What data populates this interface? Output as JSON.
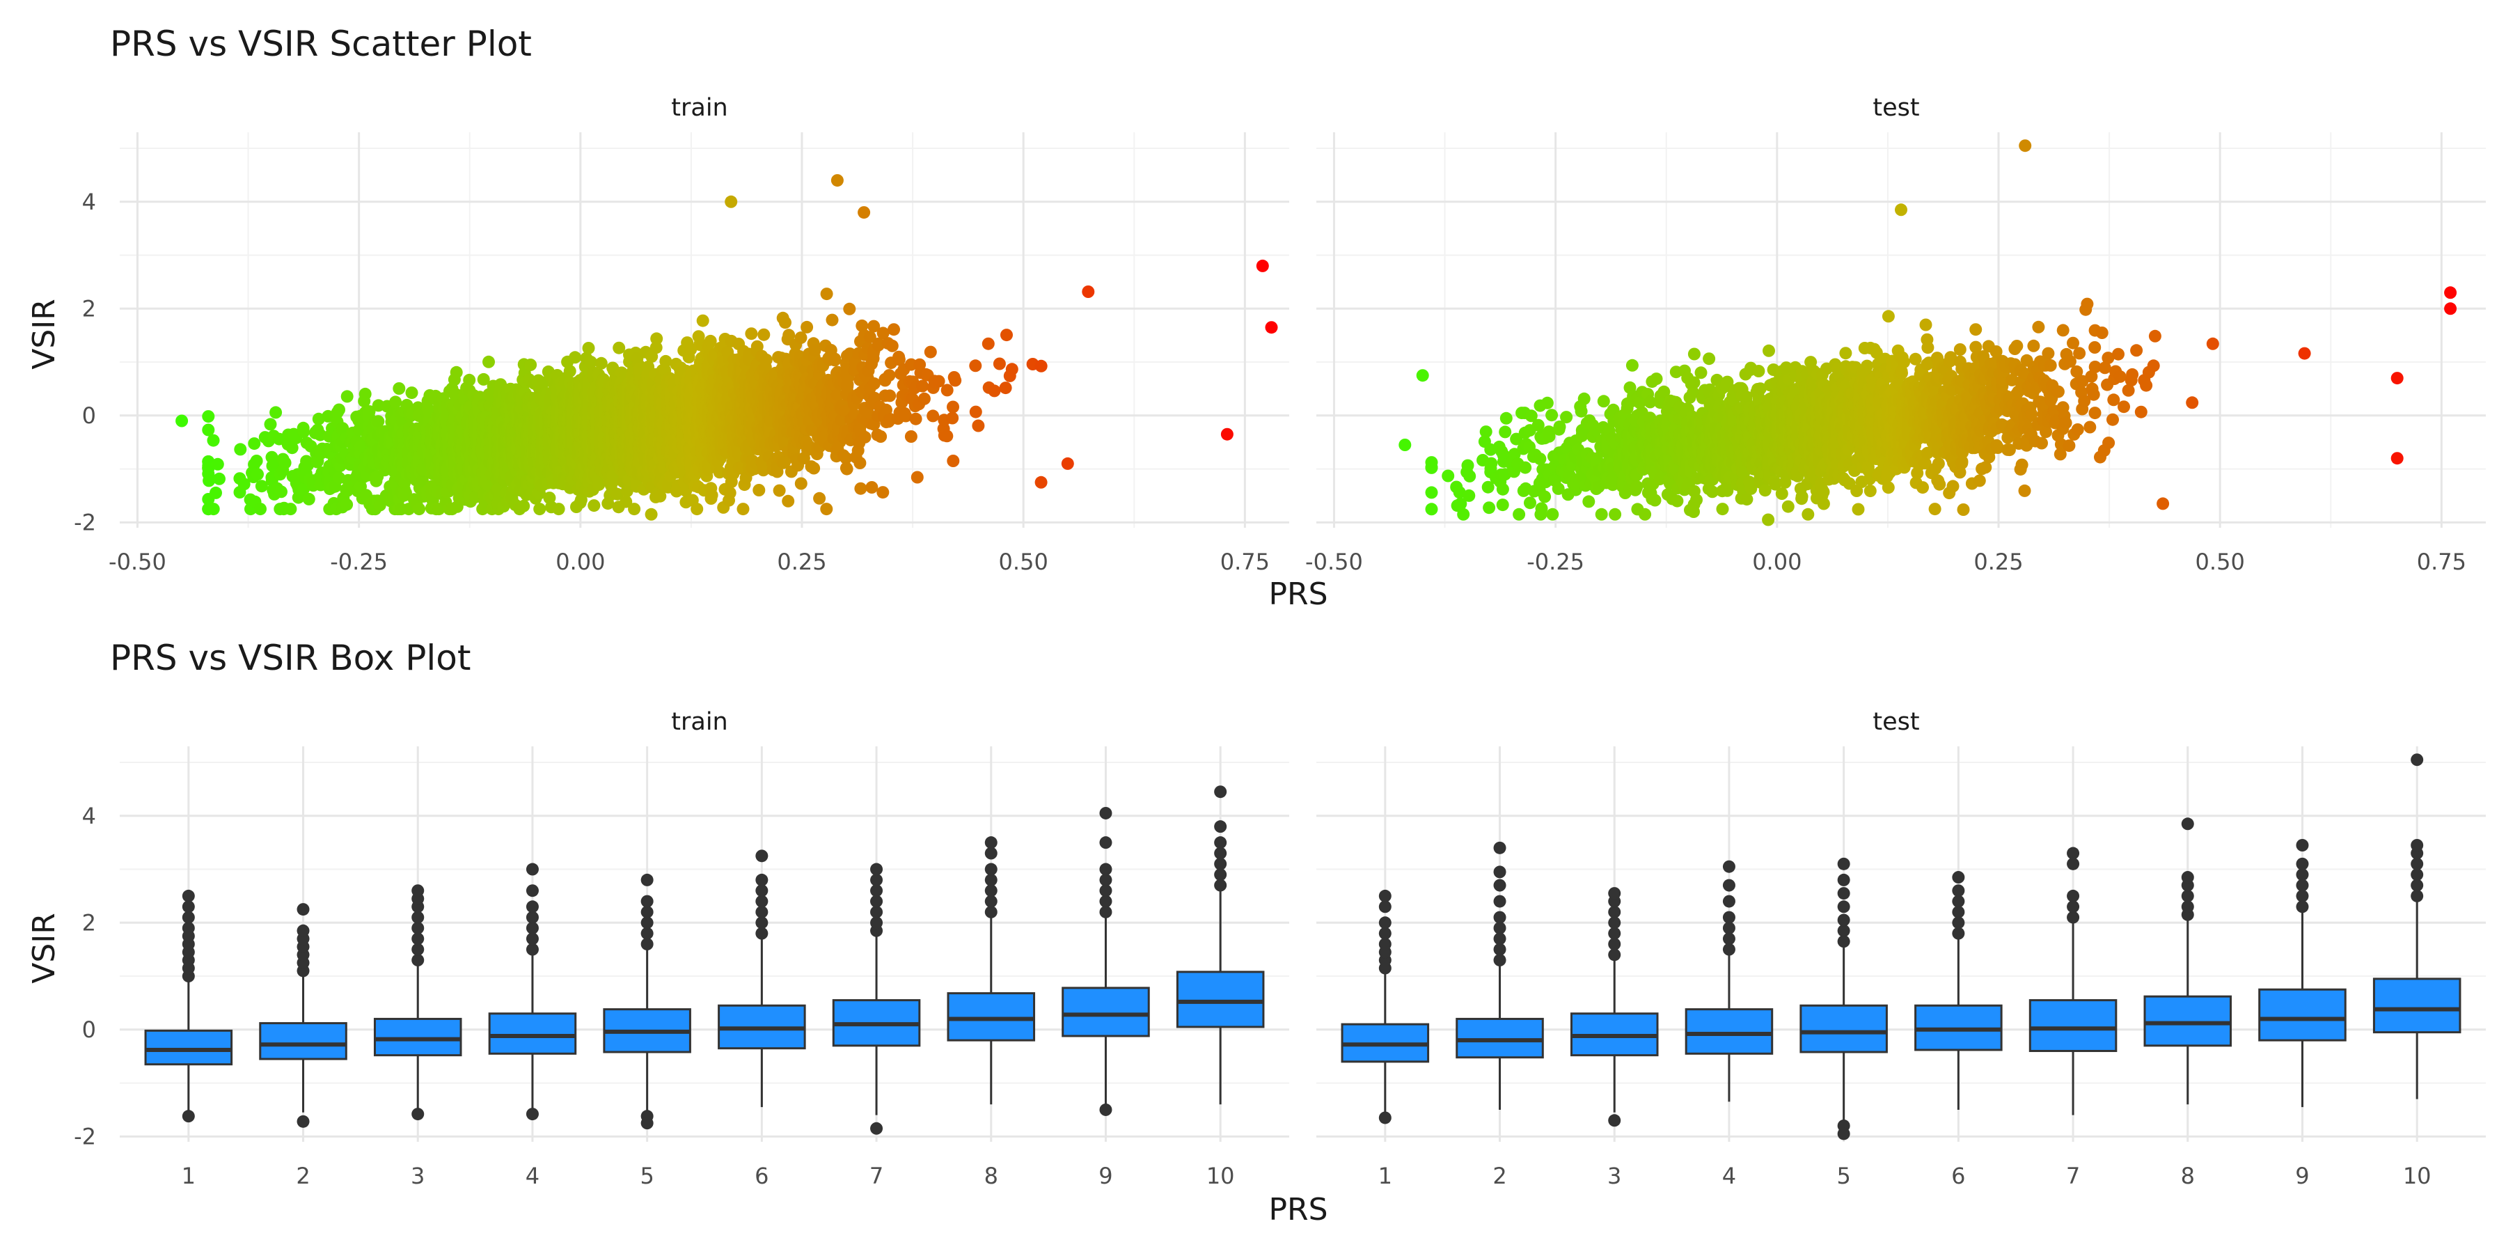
{
  "chart_data": [
    {
      "type": "scatter",
      "title": "PRS vs VSIR Scatter Plot",
      "xlabel": "PRS",
      "ylabel": "VSIR",
      "facets": [
        "train",
        "test"
      ],
      "xlim": [
        -0.52,
        0.8
      ],
      "ylim": [
        -2.1,
        5.3
      ],
      "x_ticks": [
        -0.5,
        -0.25,
        0,
        0.25,
        0.5,
        0.75
      ],
      "x_tick_labels": [
        "-0.50",
        "-0.25",
        "0.00",
        "0.25",
        "0.50",
        "0.75"
      ],
      "y_ticks": [
        -2,
        0,
        2,
        4
      ],
      "y_tick_labels": [
        "-2",
        "0",
        "2",
        "4"
      ],
      "grid": true,
      "color_scale": {
        "low": "#33ff00",
        "mid": "#c2b300",
        "high": "#ff0000",
        "range": [
          -0.5,
          0.77
        ]
      },
      "series": [
        {
          "name": "train",
          "n_points": 5000,
          "points_notable": [
            [
              -0.45,
              -0.1
            ],
            [
              0.17,
              4.0
            ],
            [
              0.29,
              4.4
            ],
            [
              0.32,
              3.8
            ],
            [
              0.77,
              2.8
            ],
            [
              0.78,
              1.65
            ],
            [
              0.73,
              -0.35
            ],
            [
              0.52,
              -1.25
            ],
            [
              0.55,
              -0.9
            ],
            [
              0.08,
              -1.85
            ]
          ],
          "x_range": [
            -0.45,
            0.78
          ],
          "y_range": [
            -1.85,
            4.4
          ]
        },
        {
          "name": "test",
          "n_points": 2500,
          "points_notable": [
            [
              -0.42,
              -0.55
            ],
            [
              -0.4,
              0.75
            ],
            [
              0.28,
              5.05
            ],
            [
              0.14,
              3.85
            ],
            [
              0.76,
              2.3
            ],
            [
              0.76,
              2.0
            ],
            [
              0.7,
              0.7
            ],
            [
              0.7,
              -0.8
            ],
            [
              -0.01,
              -1.95
            ]
          ],
          "x_range": [
            -0.42,
            0.76
          ],
          "y_range": [
            -1.95,
            5.05
          ]
        }
      ]
    },
    {
      "type": "box",
      "title": "PRS vs VSIR Box Plot",
      "xlabel": "PRS",
      "ylabel": "VSIR",
      "facets": [
        "train",
        "test"
      ],
      "categories": [
        "1",
        "2",
        "3",
        "4",
        "5",
        "6",
        "7",
        "8",
        "9",
        "10"
      ],
      "ylim": [
        -2.1,
        5.3
      ],
      "y_ticks": [
        -2,
        0,
        2,
        4
      ],
      "y_tick_labels": [
        "-2",
        "0",
        "2",
        "4"
      ],
      "grid": true,
      "box_color": "#1f8fff",
      "series": [
        {
          "name": "train",
          "boxes": [
            {
              "q1": -0.65,
              "median": -0.38,
              "q3": -0.02,
              "lower": -1.55,
              "upper": 0.9,
              "outliers": [
                -1.62,
                1.0,
                1.15,
                1.3,
                1.45,
                1.6,
                1.75,
                1.9,
                2.1,
                2.3,
                2.5
              ]
            },
            {
              "q1": -0.55,
              "median": -0.28,
              "q3": 0.12,
              "lower": -1.55,
              "upper": 1.05,
              "outliers": [
                -1.72,
                1.1,
                1.25,
                1.4,
                1.55,
                1.7,
                1.85,
                2.25
              ]
            },
            {
              "q1": -0.48,
              "median": -0.18,
              "q3": 0.2,
              "lower": -1.5,
              "upper": 1.2,
              "outliers": [
                -1.58,
                1.3,
                1.5,
                1.7,
                1.9,
                2.1,
                2.3,
                2.45,
                2.6
              ]
            },
            {
              "q1": -0.45,
              "median": -0.12,
              "q3": 0.3,
              "lower": -1.5,
              "upper": 1.45,
              "outliers": [
                -1.58,
                1.5,
                1.7,
                1.9,
                2.1,
                2.3,
                2.6,
                3.0
              ]
            },
            {
              "q1": -0.42,
              "median": -0.04,
              "q3": 0.38,
              "lower": -1.55,
              "upper": 1.55,
              "outliers": [
                -1.62,
                -1.75,
                1.6,
                1.8,
                2.0,
                2.2,
                2.4,
                2.8
              ]
            },
            {
              "q1": -0.35,
              "median": 0.02,
              "q3": 0.45,
              "lower": -1.45,
              "upper": 1.75,
              "outliers": [
                1.8,
                2.0,
                2.2,
                2.4,
                2.6,
                2.8,
                3.25
              ]
            },
            {
              "q1": -0.3,
              "median": 0.1,
              "q3": 0.55,
              "lower": -1.6,
              "upper": 1.8,
              "outliers": [
                -1.85,
                1.85,
                2.0,
                2.2,
                2.4,
                2.6,
                2.8,
                3.0
              ]
            },
            {
              "q1": -0.2,
              "median": 0.2,
              "q3": 0.68,
              "lower": -1.4,
              "upper": 2.1,
              "outliers": [
                2.2,
                2.4,
                2.6,
                2.8,
                3.0,
                3.3,
                3.5
              ]
            },
            {
              "q1": -0.12,
              "median": 0.28,
              "q3": 0.78,
              "lower": -1.4,
              "upper": 2.1,
              "outliers": [
                -1.5,
                2.2,
                2.4,
                2.6,
                2.8,
                3.0,
                3.5,
                4.05
              ]
            },
            {
              "q1": 0.05,
              "median": 0.52,
              "q3": 1.08,
              "lower": -1.4,
              "upper": 2.6,
              "outliers": [
                2.7,
                2.9,
                3.1,
                3.3,
                3.5,
                3.8,
                4.45
              ]
            }
          ]
        },
        {
          "name": "test",
          "boxes": [
            {
              "q1": -0.6,
              "median": -0.28,
              "q3": 0.1,
              "lower": -1.55,
              "upper": 1.05,
              "outliers": [
                -1.65,
                1.15,
                1.3,
                1.45,
                1.6,
                1.8,
                2.0,
                2.3,
                2.5
              ]
            },
            {
              "q1": -0.52,
              "median": -0.2,
              "q3": 0.2,
              "lower": -1.5,
              "upper": 1.2,
              "outliers": [
                1.3,
                1.5,
                1.7,
                1.9,
                2.1,
                2.4,
                2.7,
                2.95,
                3.4
              ]
            },
            {
              "q1": -0.48,
              "median": -0.12,
              "q3": 0.3,
              "lower": -1.55,
              "upper": 1.35,
              "outliers": [
                -1.7,
                1.4,
                1.6,
                1.8,
                2.0,
                2.2,
                2.4,
                2.55
              ]
            },
            {
              "q1": -0.45,
              "median": -0.08,
              "q3": 0.38,
              "lower": -1.35,
              "upper": 1.45,
              "outliers": [
                1.5,
                1.7,
                1.9,
                2.1,
                2.4,
                2.7,
                3.05
              ]
            },
            {
              "q1": -0.42,
              "median": -0.05,
              "q3": 0.45,
              "lower": -1.7,
              "upper": 1.6,
              "outliers": [
                -1.8,
                -1.95,
                1.65,
                1.85,
                2.05,
                2.3,
                2.55,
                2.8,
                3.1
              ]
            },
            {
              "q1": -0.38,
              "median": 0.0,
              "q3": 0.45,
              "lower": -1.5,
              "upper": 1.75,
              "outliers": [
                1.8,
                2.0,
                2.2,
                2.4,
                2.6,
                2.85
              ]
            },
            {
              "q1": -0.4,
              "median": 0.02,
              "q3": 0.55,
              "lower": -1.6,
              "upper": 2.0,
              "outliers": [
                2.1,
                2.3,
                2.5,
                3.1,
                3.3
              ]
            },
            {
              "q1": -0.3,
              "median": 0.12,
              "q3": 0.62,
              "lower": -1.4,
              "upper": 2.05,
              "outliers": [
                2.15,
                2.3,
                2.5,
                2.7,
                2.85,
                3.85
              ]
            },
            {
              "q1": -0.2,
              "median": 0.2,
              "q3": 0.75,
              "lower": -1.45,
              "upper": 2.2,
              "outliers": [
                2.3,
                2.5,
                2.7,
                2.9,
                3.1,
                3.45
              ]
            },
            {
              "q1": -0.05,
              "median": 0.38,
              "q3": 0.95,
              "lower": -1.3,
              "upper": 2.4,
              "outliers": [
                2.5,
                2.7,
                2.9,
                3.1,
                3.3,
                3.45,
                5.05
              ]
            }
          ]
        }
      ]
    }
  ]
}
